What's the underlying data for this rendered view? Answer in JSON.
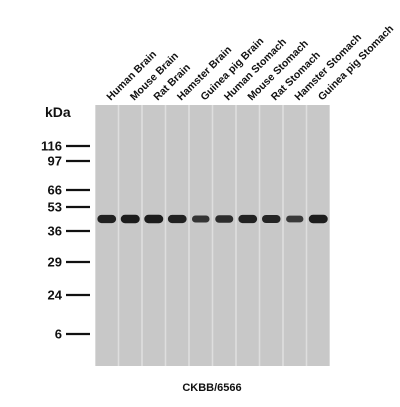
{
  "lanes": [
    {
      "label": "Human Brain",
      "band_intensity": 0.85
    },
    {
      "label": "Mouse Brain",
      "band_intensity": 0.9
    },
    {
      "label": "Rat Brain",
      "band_intensity": 0.9
    },
    {
      "label": "Hamster Brain",
      "band_intensity": 0.85
    },
    {
      "label": "Guinea pig Brain",
      "band_intensity": 0.6
    },
    {
      "label": "Human Stomach",
      "band_intensity": 0.7
    },
    {
      "label": "Mouse Stomach",
      "band_intensity": 0.85
    },
    {
      "label": "Rat Stomach",
      "band_intensity": 0.8
    },
    {
      "label": "Hamster Stomach",
      "band_intensity": 0.55
    },
    {
      "label": "Guinea pig Stomach",
      "band_intensity": 0.9
    }
  ],
  "unit_label": "kDa",
  "markers": [
    "116",
    "97",
    "66",
    "53",
    "36",
    "29",
    "24",
    "6"
  ],
  "antibody_label": "CKBB/6566",
  "colors": {
    "lane": "#c8c8c8",
    "lane_gap": "#dedede",
    "band": "#141414",
    "text": "#111111"
  }
}
